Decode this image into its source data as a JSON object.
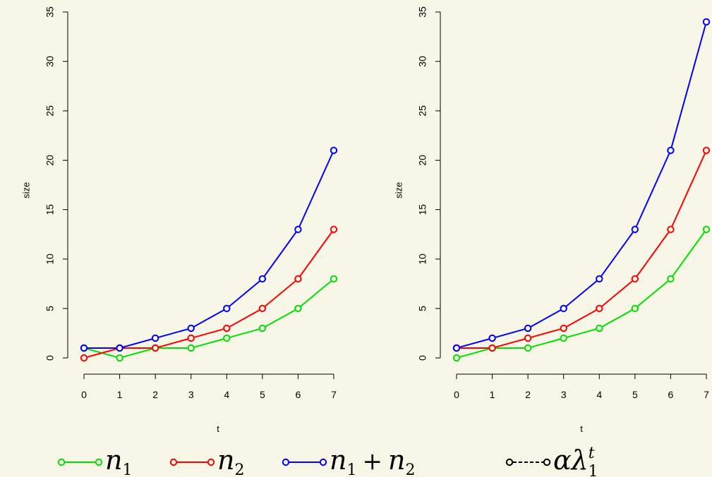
{
  "chart_data": [
    {
      "type": "line",
      "xlabel": "t",
      "ylabel": "size",
      "x": [
        0,
        1,
        2,
        3,
        4,
        5,
        6,
        7
      ],
      "xticks": [
        "0",
        "1",
        "2",
        "3",
        "4",
        "5",
        "6",
        "7"
      ],
      "yticks": [
        "0",
        "5",
        "10",
        "15",
        "20",
        "25",
        "30",
        "35"
      ],
      "ylim": [
        0,
        35
      ],
      "series": [
        {
          "key": "n1",
          "values": [
            1,
            0,
            1,
            1,
            2,
            3,
            5,
            8
          ],
          "color": "#00e000"
        },
        {
          "key": "n2",
          "values": [
            0,
            1,
            1,
            2,
            3,
            5,
            8,
            13
          ],
          "color": "#ff0000"
        },
        {
          "key": "sum",
          "values": [
            1,
            1,
            2,
            3,
            5,
            8,
            13,
            21
          ],
          "color": "#0000ff"
        }
      ]
    },
    {
      "type": "line",
      "xlabel": "t",
      "ylabel": "size",
      "x": [
        0,
        1,
        2,
        3,
        4,
        5,
        6,
        7
      ],
      "xticks": [
        "0",
        "1",
        "2",
        "3",
        "4",
        "5",
        "6",
        "7"
      ],
      "yticks": [
        "0",
        "5",
        "10",
        "15",
        "20",
        "25",
        "30",
        "35"
      ],
      "ylim": [
        0,
        35
      ],
      "series": [
        {
          "key": "n1",
          "values": [
            0,
            1,
            1,
            2,
            3,
            5,
            8,
            13
          ],
          "color": "#00e000"
        },
        {
          "key": "n2",
          "values": [
            1,
            1,
            2,
            3,
            5,
            8,
            13,
            21
          ],
          "color": "#ff0000"
        },
        {
          "key": "sum",
          "values": [
            1,
            2,
            3,
            5,
            8,
            13,
            21,
            34
          ],
          "color": "#0000ff"
        }
      ]
    }
  ],
  "legend": {
    "position": "bottom",
    "items": [
      {
        "key": "n1",
        "color": "#00e000",
        "line": "solid",
        "math": "n",
        "sub": "1"
      },
      {
        "key": "n2",
        "color": "#ff0000",
        "line": "solid",
        "math": "n",
        "sub": "2"
      },
      {
        "key": "sum",
        "color": "#0000ff",
        "line": "solid",
        "math": "n",
        "sub": "1",
        "plus": "+",
        "math2": "n",
        "sub2": "2"
      },
      {
        "key": "alpha",
        "color": "#000000",
        "line": "dashed",
        "math": "αλ",
        "sub": "1",
        "sup": "t"
      }
    ]
  },
  "background": "#f7f6e7"
}
